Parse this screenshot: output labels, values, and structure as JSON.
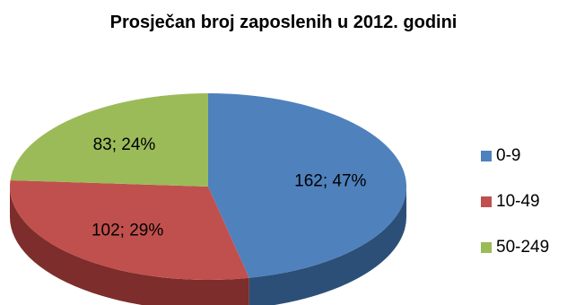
{
  "chart_data": {
    "type": "pie",
    "title": "Prosječan broj zaposlenih u 2012. godini",
    "slices": [
      {
        "name": "0-9",
        "value": 162,
        "percent": 47,
        "label": "162; 47%",
        "color": "#4f81bd",
        "side_color": "#2c4f77"
      },
      {
        "name": "10-49",
        "value": 102,
        "percent": 29,
        "label": "102; 29%",
        "color": "#c0504d",
        "side_color": "#7d2d2b"
      },
      {
        "name": "50-249",
        "value": 83,
        "percent": 24,
        "label": "83; 24%",
        "color": "#9bbb59",
        "side_color": "#5f7730"
      }
    ],
    "legend_position": "right"
  }
}
